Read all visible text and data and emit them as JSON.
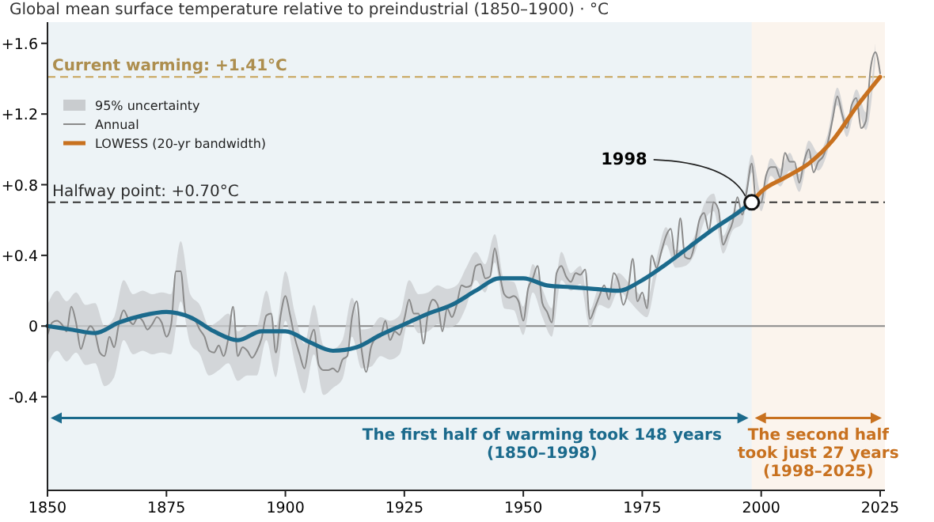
{
  "chart_data": {
    "type": "line",
    "title": "Global mean surface temperature relative to preindustrial (1850–1900)  ·  °C",
    "x": [
      1850,
      1851,
      1852,
      1853,
      1854,
      1855,
      1856,
      1857,
      1858,
      1859,
      1860,
      1861,
      1862,
      1863,
      1864,
      1865,
      1866,
      1867,
      1868,
      1869,
      1870,
      1871,
      1872,
      1873,
      1874,
      1875,
      1876,
      1877,
      1878,
      1879,
      1880,
      1881,
      1882,
      1883,
      1884,
      1885,
      1886,
      1887,
      1888,
      1889,
      1890,
      1891,
      1892,
      1893,
      1894,
      1895,
      1896,
      1897,
      1898,
      1899,
      1900,
      1901,
      1902,
      1903,
      1904,
      1905,
      1906,
      1907,
      1908,
      1909,
      1910,
      1911,
      1912,
      1913,
      1914,
      1915,
      1916,
      1917,
      1918,
      1919,
      1920,
      1921,
      1922,
      1923,
      1924,
      1925,
      1926,
      1927,
      1928,
      1929,
      1930,
      1931,
      1932,
      1933,
      1934,
      1935,
      1936,
      1937,
      1938,
      1939,
      1940,
      1941,
      1942,
      1943,
      1944,
      1945,
      1946,
      1947,
      1948,
      1949,
      1950,
      1951,
      1952,
      1953,
      1954,
      1955,
      1956,
      1957,
      1958,
      1959,
      1960,
      1961,
      1962,
      1963,
      1964,
      1965,
      1966,
      1967,
      1968,
      1969,
      1970,
      1971,
      1972,
      1973,
      1974,
      1975,
      1976,
      1977,
      1978,
      1979,
      1980,
      1981,
      1982,
      1983,
      1984,
      1985,
      1986,
      1987,
      1988,
      1989,
      1990,
      1991,
      1992,
      1993,
      1994,
      1995,
      1996,
      1997,
      1998,
      1999,
      2000,
      2001,
      2002,
      2003,
      2004,
      2005,
      2006,
      2007,
      2008,
      2009,
      2010,
      2011,
      2012,
      2013,
      2014,
      2015,
      2016,
      2017,
      2018,
      2019,
      2020,
      2021,
      2022,
      2023,
      2024,
      2025
    ],
    "series": [
      {
        "name": "95% uncertainty",
        "type": "area",
        "color": "#c9cccf",
        "values": [
          null,
          null,
          null,
          null,
          null,
          null,
          null,
          null,
          null,
          null,
          null,
          null,
          null,
          null,
          null,
          null,
          null,
          null,
          null,
          null,
          null,
          null,
          null,
          null,
          null,
          null,
          null,
          null,
          null,
          null,
          null,
          null,
          null,
          null,
          null,
          null,
          null,
          null,
          null,
          null,
          null,
          null,
          null,
          null,
          null,
          null,
          null,
          null,
          null,
          null,
          null,
          null,
          null,
          null,
          null,
          null,
          null,
          null,
          null,
          null,
          null,
          null,
          null,
          null,
          null,
          null,
          null,
          null,
          null,
          null,
          null,
          null,
          null,
          null,
          null,
          null,
          null,
          null,
          null,
          null,
          null,
          null,
          null,
          null,
          null,
          null,
          null,
          null
        ],
        "x": [
          1850,
          1852,
          1854,
          1856,
          1858,
          1860,
          1862,
          1864,
          1866,
          1868,
          1870,
          1872,
          1874,
          1876,
          1878,
          1880,
          1882,
          1884,
          1886,
          1888,
          1890,
          1892,
          1894,
          1896,
          1898,
          1900,
          1902,
          1904,
          1906,
          1908,
          1910,
          1912,
          1914,
          1916,
          1918,
          1920,
          1922,
          1924,
          1926,
          1928,
          1930,
          1932,
          1934,
          1936,
          1938,
          1940,
          1942,
          1944,
          1946,
          1948,
          1950,
          1952,
          1954,
          1956,
          1958,
          1960,
          1962,
          1964,
          1966,
          1968,
          1970,
          1972,
          1974,
          1976,
          1978,
          1980,
          1982,
          1984,
          1986,
          1988,
          1990,
          1992,
          1994,
          1996,
          1998,
          2000,
          2002,
          2004,
          2006,
          2008,
          2010,
          2012,
          2014,
          2016,
          2018,
          2020,
          2022,
          2024
        ],
        "lower": [
          -0.22,
          -0.14,
          -0.2,
          -0.15,
          -0.22,
          -0.21,
          -0.34,
          -0.29,
          -0.08,
          -0.16,
          -0.14,
          -0.16,
          -0.15,
          -0.16,
          0.14,
          -0.1,
          -0.16,
          -0.28,
          -0.25,
          -0.21,
          -0.31,
          -0.28,
          -0.28,
          -0.08,
          -0.29,
          0.03,
          -0.21,
          -0.38,
          -0.16,
          -0.39,
          -0.35,
          -0.3,
          -0.06,
          -0.24,
          -0.23,
          -0.17,
          -0.19,
          -0.16,
          0.04,
          -0.04,
          -0.03,
          0.01,
          -0.01,
          0.01,
          0.11,
          0.26,
          0.19,
          0.36,
          0.1,
          0.09,
          -0.05,
          0.19,
          0.05,
          -0.06,
          0.26,
          0.2,
          0.24,
          -0.01,
          0.12,
          0.1,
          0.2,
          0.15,
          0.09,
          0.05,
          0.28,
          0.46,
          0.33,
          0.34,
          0.41,
          0.59,
          0.65,
          0.41,
          0.54,
          0.58,
          0.87,
          0.65,
          0.85,
          0.79,
          0.88,
          0.76,
          0.95,
          0.88,
          0.99,
          1.25,
          1.07,
          1.24,
          1.11,
          1.5
        ],
        "upper": [
          0.12,
          0.2,
          0.14,
          0.19,
          0.12,
          0.13,
          0.0,
          0.05,
          0.26,
          0.18,
          0.2,
          0.18,
          0.19,
          0.18,
          0.48,
          0.18,
          0.12,
          0.0,
          0.03,
          0.07,
          -0.03,
          0.0,
          0.0,
          0.2,
          -0.01,
          0.31,
          0.07,
          -0.1,
          0.12,
          -0.11,
          -0.13,
          -0.08,
          0.16,
          -0.02,
          -0.01,
          0.05,
          0.03,
          0.06,
          0.26,
          0.18,
          0.19,
          0.23,
          0.21,
          0.23,
          0.33,
          0.42,
          0.35,
          0.52,
          0.26,
          0.25,
          0.11,
          0.35,
          0.21,
          0.1,
          0.42,
          0.3,
          0.34,
          0.09,
          0.22,
          0.2,
          0.3,
          0.25,
          0.19,
          0.15,
          0.38,
          0.56,
          0.43,
          0.44,
          0.51,
          0.69,
          0.75,
          0.51,
          0.64,
          0.68,
          0.97,
          0.75,
          0.95,
          0.89,
          0.98,
          0.86,
          1.05,
          0.98,
          1.09,
          1.35,
          1.17,
          1.34,
          1.21,
          1.6
        ]
      },
      {
        "name": "Annual",
        "color": "#8a8a8a",
        "values": [
          -0.05,
          0.02,
          0.03,
          0.01,
          -0.03,
          0.11,
          0.02,
          -0.13,
          -0.05,
          0.0,
          -0.04,
          -0.15,
          -0.17,
          -0.06,
          -0.12,
          0.01,
          0.09,
          0.04,
          0.01,
          0.05,
          0.03,
          -0.02,
          0.01,
          0.05,
          0.02,
          -0.06,
          0.01,
          0.31,
          0.31,
          0.07,
          0.04,
          0.03,
          -0.02,
          -0.06,
          -0.14,
          -0.15,
          -0.11,
          -0.17,
          -0.07,
          0.11,
          -0.17,
          -0.12,
          -0.14,
          -0.18,
          -0.14,
          -0.07,
          0.06,
          0.07,
          -0.15,
          0.06,
          0.17,
          0.06,
          -0.07,
          -0.16,
          -0.24,
          -0.1,
          -0.02,
          -0.22,
          -0.25,
          -0.25,
          -0.24,
          -0.26,
          -0.19,
          -0.17,
          0.05,
          0.14,
          -0.13,
          -0.26,
          -0.12,
          -0.07,
          -0.06,
          0.03,
          -0.08,
          -0.03,
          -0.05,
          0.04,
          0.15,
          0.07,
          0.07,
          -0.1,
          0.08,
          0.15,
          0.12,
          -0.03,
          0.1,
          0.05,
          0.12,
          0.23,
          0.22,
          0.23,
          0.34,
          0.35,
          0.27,
          0.28,
          0.44,
          0.3,
          0.18,
          0.16,
          0.17,
          0.14,
          0.03,
          0.21,
          0.27,
          0.34,
          0.13,
          0.08,
          0.02,
          0.3,
          0.34,
          0.28,
          0.25,
          0.3,
          0.29,
          0.32,
          0.04,
          0.1,
          0.17,
          0.23,
          0.15,
          0.3,
          0.25,
          0.12,
          0.2,
          0.38,
          0.14,
          0.19,
          0.1,
          0.4,
          0.33,
          0.42,
          0.51,
          0.55,
          0.38,
          0.61,
          0.39,
          0.38,
          0.46,
          0.6,
          0.64,
          0.54,
          0.7,
          0.66,
          0.46,
          0.52,
          0.59,
          0.73,
          0.63,
          0.77,
          0.92,
          0.69,
          0.7,
          0.85,
          0.9,
          0.9,
          0.84,
          0.98,
          0.93,
          0.93,
          0.81,
          0.93,
          1.0,
          0.87,
          0.93,
          0.96,
          1.04,
          1.17,
          1.3,
          1.2,
          1.12,
          1.25,
          1.29,
          1.12,
          1.16,
          1.46,
          1.55,
          1.43
        ]
      },
      {
        "color": "#1b6a8c",
        "x": [
          1850,
          1855,
          1860,
          1865,
          1870,
          1875,
          1880,
          1885,
          1890,
          1895,
          1900,
          1905,
          1910,
          1915,
          1920,
          1925,
          1930,
          1935,
          1940,
          1945,
          1950,
          1955,
          1960,
          1965,
          1970,
          1975,
          1980,
          1985,
          1990,
          1995,
          1998
        ],
        "values": [
          0.0,
          -0.02,
          -0.04,
          0.02,
          0.06,
          0.08,
          0.05,
          -0.03,
          -0.08,
          -0.03,
          -0.03,
          -0.09,
          -0.14,
          -0.12,
          -0.05,
          0.01,
          0.07,
          0.12,
          0.2,
          0.27,
          0.27,
          0.23,
          0.22,
          0.21,
          0.2,
          0.26,
          0.35,
          0.45,
          0.55,
          0.64,
          0.7
        ]
      },
      {
        "name": "LOWESS (20-yr bandwidth)",
        "color": "#c8711f",
        "x": [
          1998,
          2000,
          2005,
          2010,
          2015,
          2020,
          2025
        ],
        "values": [
          0.7,
          0.76,
          0.84,
          0.92,
          1.05,
          1.24,
          1.41
        ]
      }
    ],
    "xlim": [
      1850,
      2026
    ],
    "xticks": [
      1850,
      1875,
      1900,
      1925,
      1950,
      1975,
      2000,
      2025
    ],
    "ylim": [
      -0.93,
      1.72
    ],
    "yticks": [
      {
        "value": -0.4,
        "label": "-0.4"
      },
      0,
      {
        "value": 0.4,
        "label": "+0.4"
      },
      {
        "value": 0.8,
        "label": "+0.8"
      },
      {
        "value": 1.2,
        "label": "+1.2"
      },
      {
        "value": 1.6,
        "label": "+1.6"
      }
    ],
    "ref_lines": [
      {
        "axis": "y",
        "value": 1.41,
        "label": "Current warming: +1.41°C",
        "color": "#c8a45a",
        "line_style": "dashed"
      },
      {
        "axis": "y",
        "value": 0.7,
        "label": "Halfway point: +0.70°C",
        "color": "#333333",
        "line_style": "dashed"
      },
      {
        "axis": "y",
        "value": 0,
        "color": "#8a8a8a",
        "line_style": "solid"
      }
    ],
    "bands": [
      {
        "axis": "x",
        "from": 1850,
        "to": 1998,
        "label": "The first half of warming took 148 years\n(1850–1998)",
        "color": "#1b6a8c"
      },
      {
        "axis": "x",
        "from": 1998,
        "to": 2026,
        "label": "The second half\ntook just 27 years\n(1998–2025)",
        "color": "#c8711f"
      }
    ],
    "annotations": [
      {
        "text": "1998",
        "x": 1998,
        "y": 0.7
      }
    ],
    "legend": "top left",
    "grid": false
  }
}
